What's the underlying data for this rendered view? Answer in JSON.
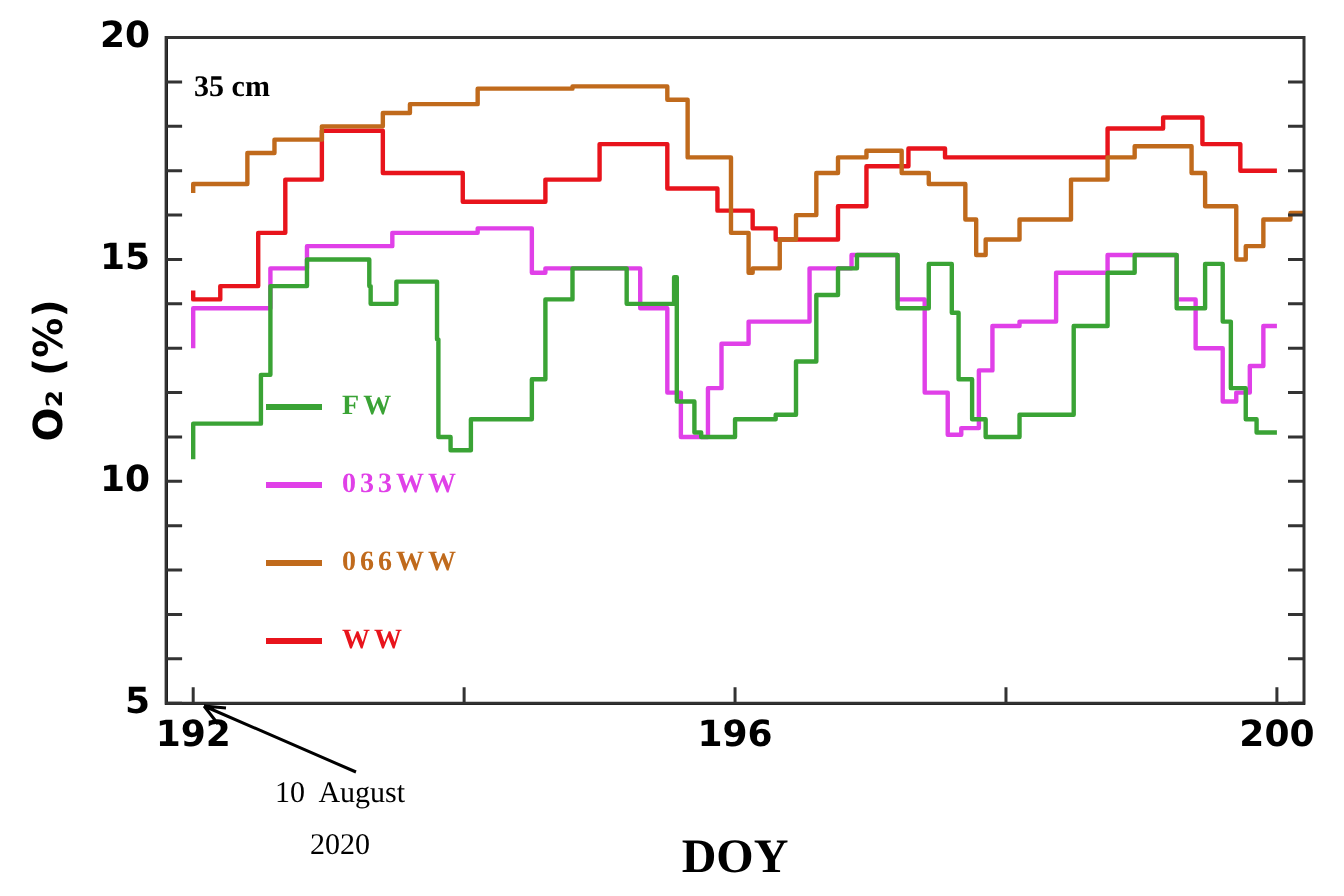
{
  "chart_data": {
    "type": "step",
    "xlabel": "DOY",
    "ylabel": "O₂ (%)",
    "xlim": [
      191.8,
      200.2
    ],
    "ylim": [
      5,
      20
    ],
    "xticks": [
      192,
      {
        "value": 194,
        "label": null
      },
      196,
      {
        "value": 198,
        "label": null
      },
      200
    ],
    "yticks": [
      5,
      {
        "value": 6,
        "label": null
      },
      {
        "value": 7,
        "label": null
      },
      {
        "value": 8,
        "label": null
      },
      {
        "value": 9,
        "label": null
      },
      10,
      {
        "value": 11,
        "label": null
      },
      {
        "value": 12,
        "label": null
      },
      {
        "value": 13,
        "label": null
      },
      {
        "value": 14,
        "label": null
      },
      15,
      {
        "value": 16,
        "label": null
      },
      {
        "value": 17,
        "label": null
      },
      {
        "value": 18,
        "label": null
      },
      {
        "value": 19,
        "label": null
      },
      20
    ],
    "grid": false,
    "legend": "bottom left",
    "marker": "none",
    "line_style": "solid",
    "annotations": [
      "35 cm",
      "10 August 2020"
    ],
    "series": [
      {
        "name": "FW",
        "color": "#3aa335",
        "x": [
          192.0,
          192.5,
          192.57,
          192.84,
          193.3,
          193.31,
          193.5,
          193.8,
          193.81,
          193.9,
          194.05,
          194.5,
          194.6,
          194.8,
          195.2,
          195.55,
          195.57,
          195.7,
          195.75,
          196.0,
          196.3,
          196.45,
          196.6,
          196.76,
          196.9,
          197.2,
          197.43,
          197.6,
          197.65,
          197.75,
          197.85,
          198.1,
          198.5,
          198.75,
          198.95,
          199.26,
          199.47,
          199.6,
          199.66,
          199.77,
          199.85,
          200.0
        ],
        "values": [
          10.5,
          11.3,
          12.4,
          14.4,
          15.0,
          14.4,
          14.0,
          14.5,
          13.2,
          11.0,
          10.7,
          11.4,
          12.3,
          14.1,
          14.8,
          14.0,
          14.6,
          11.8,
          11.1,
          11.0,
          11.4,
          11.5,
          12.7,
          14.2,
          14.8,
          15.1,
          13.9,
          14.9,
          13.8,
          12.3,
          11.4,
          11.0,
          11.5,
          13.5,
          14.7,
          15.1,
          13.9,
          14.9,
          13.6,
          12.1,
          11.4,
          11.1
        ]
      },
      {
        "name": "033WW",
        "color": "#e040e8",
        "x": [
          192.0,
          192.57,
          192.84,
          193.47,
          194.1,
          194.5,
          194.6,
          195.0,
          195.3,
          195.5,
          195.6,
          195.7,
          195.8,
          195.9,
          196.1,
          196.55,
          196.86,
          197.2,
          197.4,
          197.57,
          197.67,
          197.8,
          197.9,
          198.1,
          198.37,
          198.75,
          199.26,
          199.4,
          199.6,
          199.7,
          199.8,
          199.9,
          200.0
        ],
        "values": [
          13.0,
          13.9,
          14.8,
          15.3,
          15.6,
          15.7,
          14.7,
          14.8,
          14.8,
          13.9,
          12.0,
          11.0,
          11.0,
          12.1,
          13.1,
          13.6,
          14.8,
          15.1,
          14.1,
          12.0,
          11.05,
          11.2,
          12.5,
          13.5,
          13.6,
          14.7,
          15.1,
          14.1,
          13.0,
          11.8,
          12.0,
          12.6,
          13.5
        ]
      },
      {
        "name": "066WW",
        "color": "#c06a1c",
        "x": [
          192.0,
          192.4,
          192.6,
          192.95,
          193.4,
          193.6,
          194.1,
          194.8,
          195.5,
          195.65,
          195.97,
          196.1,
          196.13,
          196.33,
          196.45,
          196.6,
          196.76,
          196.97,
          197.23,
          197.43,
          197.7,
          197.78,
          197.85,
          198.1,
          198.48,
          198.75,
          198.95,
          199.37,
          199.47,
          199.7,
          199.77,
          199.9,
          200.1,
          200.2
        ],
        "values": [
          16.5,
          16.7,
          17.4,
          17.7,
          18.0,
          18.3,
          18.5,
          18.85,
          18.9,
          18.6,
          17.3,
          15.6,
          14.7,
          14.8,
          15.45,
          16.0,
          16.95,
          17.3,
          17.45,
          16.95,
          16.7,
          15.9,
          15.1,
          15.45,
          15.9,
          16.8,
          17.3,
          17.55,
          16.95,
          16.2,
          15.0,
          15.3,
          15.9,
          16.05
        ]
      },
      {
        "name": "WW",
        "color": "#e8141c",
        "x": [
          192.0,
          192.2,
          192.48,
          192.68,
          192.95,
          193.4,
          193.99,
          194.6,
          195.0,
          195.5,
          195.87,
          196.13,
          196.3,
          196.6,
          196.76,
          196.97,
          197.28,
          197.55,
          197.96,
          198.75,
          199.16,
          199.45,
          199.73,
          200.0
        ],
        "values": [
          14.3,
          14.1,
          14.4,
          15.6,
          16.8,
          17.9,
          16.95,
          16.3,
          16.8,
          17.6,
          16.6,
          16.1,
          15.7,
          15.45,
          15.45,
          16.2,
          17.1,
          17.5,
          17.3,
          17.3,
          17.95,
          18.2,
          17.6,
          17.0
        ]
      }
    ]
  }
}
